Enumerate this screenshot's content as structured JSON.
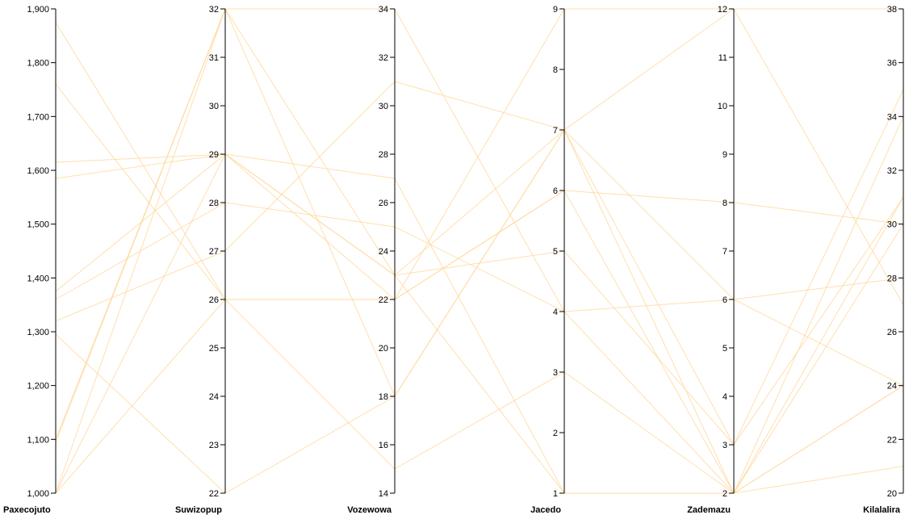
{
  "chart_data": {
    "type": "parallel-coordinates",
    "line_color": "#ffd79a",
    "axes": [
      {
        "name": "Paxecojuto",
        "range": [
          1000,
          1900
        ],
        "ticks": [
          1000,
          1100,
          1200,
          1300,
          1400,
          1500,
          1600,
          1700,
          1800,
          1900
        ],
        "tick_labels": [
          "1,000",
          "1,100",
          "1,200",
          "1,300",
          "1,400",
          "1,500",
          "1,600",
          "1,700",
          "1,800",
          "1,900"
        ]
      },
      {
        "name": "Suwizopup",
        "range": [
          22,
          32
        ],
        "ticks": [
          22,
          23,
          24,
          25,
          26,
          27,
          28,
          29,
          30,
          31,
          32
        ],
        "tick_labels": [
          "22",
          "23",
          "24",
          "25",
          "26",
          "27",
          "28",
          "29",
          "30",
          "31",
          "32"
        ]
      },
      {
        "name": "Vozewowa",
        "range": [
          14,
          34
        ],
        "ticks": [
          14,
          16,
          18,
          20,
          22,
          24,
          26,
          28,
          30,
          32,
          34
        ],
        "tick_labels": [
          "14",
          "16",
          "18",
          "20",
          "22",
          "24",
          "26",
          "28",
          "30",
          "32",
          "34"
        ]
      },
      {
        "name": "Jacedo",
        "range": [
          1,
          9
        ],
        "ticks": [
          1,
          2,
          3,
          4,
          5,
          6,
          7,
          8,
          9
        ],
        "tick_labels": [
          "1",
          "2",
          "3",
          "4",
          "5",
          "6",
          "7",
          "8",
          "9"
        ]
      },
      {
        "name": "Zademazu",
        "range": [
          2,
          12
        ],
        "ticks": [
          2,
          3,
          4,
          5,
          6,
          7,
          8,
          9,
          10,
          11,
          12
        ],
        "tick_labels": [
          "2",
          "3",
          "4",
          "5",
          "6",
          "7",
          "8",
          "9",
          "10",
          "11",
          "12"
        ]
      },
      {
        "name": "Kilalalira",
        "range": [
          20,
          38
        ],
        "ticks": [
          20,
          22,
          24,
          26,
          28,
          30,
          32,
          34,
          36,
          38
        ],
        "tick_labels": [
          "20",
          "22",
          "24",
          "26",
          "28",
          "30",
          "32",
          "34",
          "36",
          "38"
        ]
      }
    ],
    "records": [
      [
        1875,
        26,
        22,
        6,
        2,
        34
      ],
      [
        1760,
        26,
        15,
        3,
        2,
        24
      ],
      [
        1615,
        29,
        27,
        1,
        2,
        31
      ],
      [
        1585,
        29,
        22,
        9,
        12,
        27
      ],
      [
        1375,
        29,
        23,
        5,
        3,
        31
      ],
      [
        1360,
        28,
        25,
        4,
        6,
        28
      ],
      [
        1320,
        27,
        31,
        7,
        2,
        21
      ],
      [
        1295,
        22,
        18,
        7,
        3,
        35
      ],
      [
        1100,
        32,
        34,
        4,
        2,
        24
      ],
      [
        1095,
        32,
        23,
        7,
        6,
        24
      ],
      [
        1000,
        26,
        22,
        6,
        8,
        30
      ],
      [
        1000,
        32,
        18,
        7,
        12,
        38
      ],
      [
        1000,
        29,
        23,
        1,
        2,
        30
      ]
    ]
  }
}
